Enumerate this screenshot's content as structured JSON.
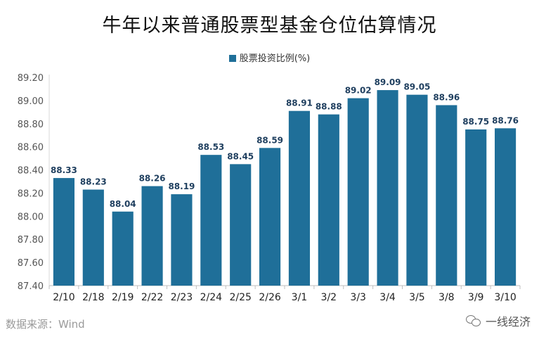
{
  "chart_data": {
    "type": "bar",
    "title": "牛年以来普通股票型基金仓位估算情况",
    "legend": "股票投资比例(%)",
    "categories": [
      "2/10",
      "2/18",
      "2/19",
      "2/22",
      "2/23",
      "2/24",
      "2/25",
      "2/26",
      "3/1",
      "3/2",
      "3/3",
      "3/4",
      "3/5",
      "3/8",
      "3/9",
      "3/10"
    ],
    "values": [
      88.33,
      88.23,
      88.04,
      88.26,
      88.19,
      88.53,
      88.45,
      88.59,
      88.91,
      88.88,
      89.02,
      89.09,
      89.05,
      88.96,
      88.75,
      88.76
    ],
    "value_labels": [
      "88.33",
      "88.23",
      "88.04",
      "88.26",
      "88.19",
      "88.53",
      "88.45",
      "88.59",
      "88.91",
      "88.88",
      "89.02",
      "89.09",
      "89.05",
      "88.96",
      "88.75",
      "88.76"
    ],
    "y_ticks": [
      "87.40",
      "87.60",
      "87.80",
      "88.00",
      "88.20",
      "88.40",
      "88.60",
      "88.80",
      "89.00",
      "89.20"
    ],
    "ylim": [
      87.4,
      89.2
    ],
    "grid": false,
    "legend_position": "top-center",
    "bar_color": "#1f6f99"
  },
  "source": "数据来源：Wind",
  "watermark": "一线经济"
}
